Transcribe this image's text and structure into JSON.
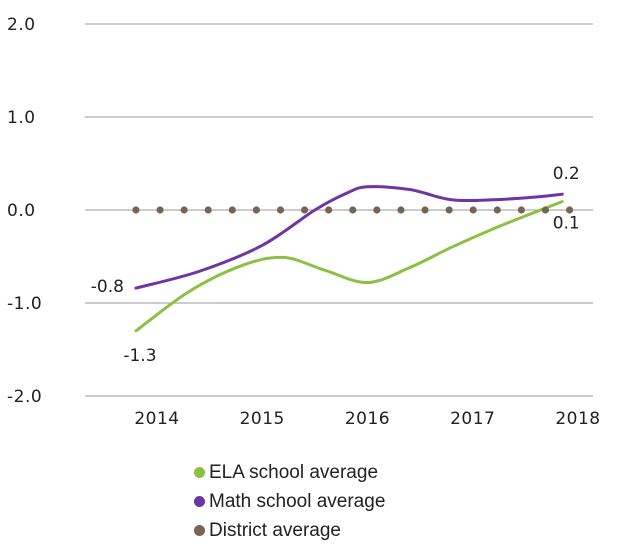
{
  "chart_data": {
    "type": "line",
    "categories": [
      "2014",
      "2015",
      "2016",
      "2017",
      "2018"
    ],
    "x": [
      2014,
      2015,
      2016,
      2017,
      2018
    ],
    "ylim": [
      -2.0,
      2.0
    ],
    "yticks": [
      {
        "value": 2.0,
        "label": "2.0"
      },
      {
        "value": 1.0,
        "label": "1.0"
      },
      {
        "value": 0.0,
        "label": "0.0"
      },
      {
        "value": -1.0,
        "label": "-1.0"
      },
      {
        "value": -2.0,
        "label": "-2.0"
      }
    ],
    "grid": true,
    "legend_position": "bottom",
    "series": [
      {
        "name": "ELA school average",
        "color": "#8cc043",
        "smooth_x": [
          2013.8,
          2014.3,
          2014.8,
          2015.2,
          2015.6,
          2016.0,
          2016.4,
          2016.8,
          2017.2,
          2017.6,
          2017.85
        ],
        "smooth_y": [
          -1.3,
          -0.88,
          -0.6,
          -0.51,
          -0.65,
          -0.78,
          -0.62,
          -0.4,
          -0.2,
          -0.02,
          0.09
        ],
        "labels": [
          {
            "x": 2013.8,
            "y": -1.3,
            "text": "-1.3"
          },
          {
            "x": 2017.85,
            "y": 0.09,
            "text": "0.1"
          }
        ]
      },
      {
        "name": "Math school average",
        "color": "#6f35a4",
        "smooth_x": [
          2013.8,
          2014.4,
          2015.0,
          2015.5,
          2015.8,
          2016.0,
          2016.4,
          2016.8,
          2017.2,
          2017.6,
          2017.85
        ],
        "smooth_y": [
          -0.84,
          -0.66,
          -0.38,
          0.0,
          0.18,
          0.25,
          0.22,
          0.11,
          0.11,
          0.14,
          0.17
        ],
        "labels": [
          {
            "x": 2013.8,
            "y": -0.84,
            "text": "-0.8"
          },
          {
            "x": 2017.85,
            "y": 0.17,
            "text": "0.2"
          }
        ]
      },
      {
        "name": "District average",
        "color": "#766554",
        "value": 0.0,
        "points": 19
      }
    ]
  }
}
